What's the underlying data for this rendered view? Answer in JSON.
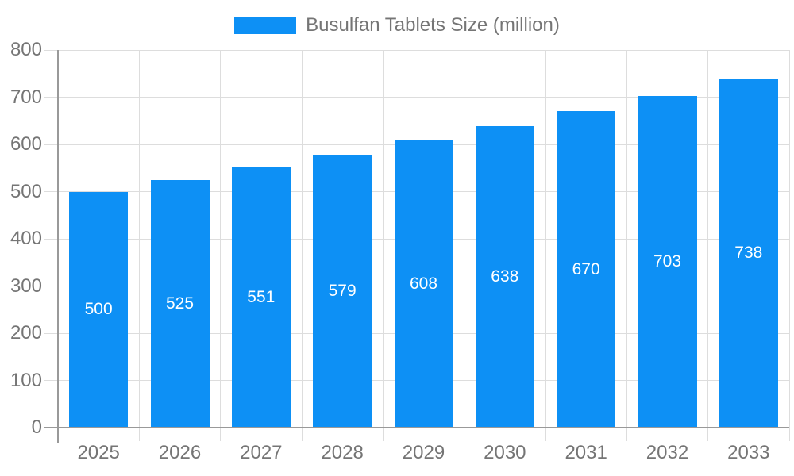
{
  "chart_data": {
    "type": "bar",
    "title": "Busulfan Tablets Size (million)",
    "legend": {
      "label": "Busulfan Tablets Size (million)",
      "position": "top"
    },
    "categories": [
      "2025",
      "2026",
      "2027",
      "2028",
      "2029",
      "2030",
      "2031",
      "2032",
      "2033"
    ],
    "series": [
      {
        "name": "Busulfan Tablets Size (million)",
        "values": [
          500,
          525,
          551,
          579,
          608,
          638,
          670,
          703,
          738
        ]
      }
    ],
    "xlabel": "",
    "ylabel": "",
    "ylim": [
      0,
      800
    ],
    "ytick_step": 100,
    "grid": true,
    "value_labels_shown": true,
    "colors": {
      "bar": "#0D90F5",
      "grid_line": "#DDDDDD",
      "axis_line": "#999999",
      "tick_text": "#757575",
      "value_label": "#FFFFFF",
      "background": "#FFFFFF"
    }
  }
}
